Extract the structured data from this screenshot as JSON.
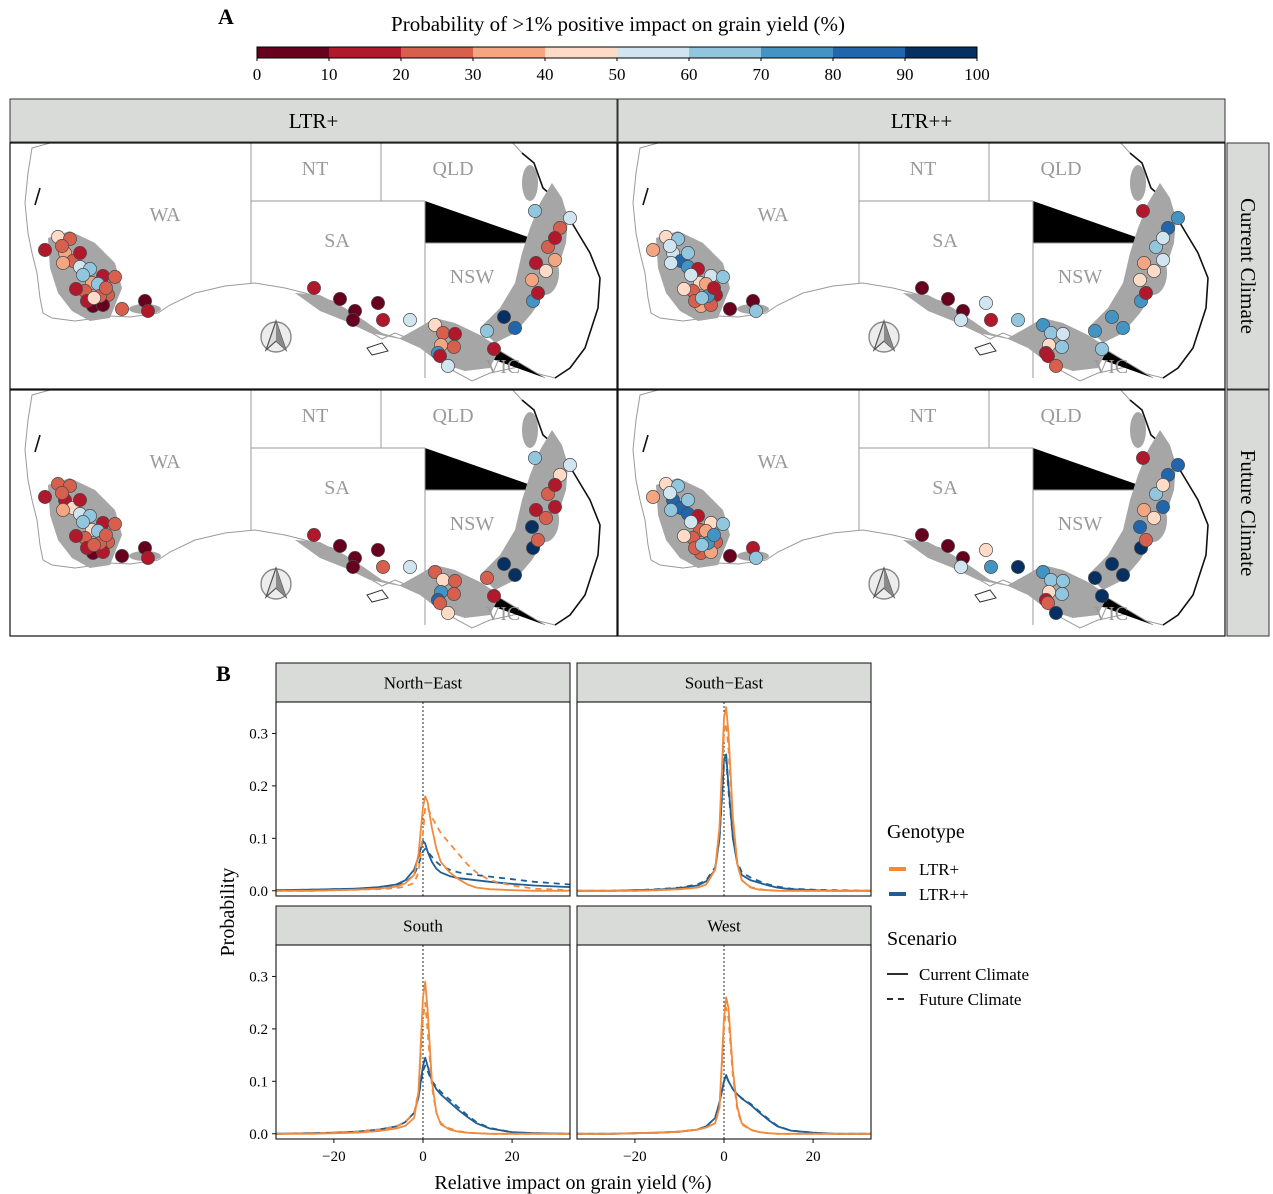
{
  "panel_a_label": "A",
  "panel_b_label": "B",
  "colorbar": {
    "title": "Probability of >1% positive impact on grain yield (%)",
    "ticks": [
      "0",
      "10",
      "20",
      "30",
      "40",
      "50",
      "60",
      "70",
      "80",
      "90",
      "100"
    ],
    "colors": [
      "#67001f",
      "#b2182b",
      "#d6604d",
      "#f4a582",
      "#fddbc7",
      "#d1e5f0",
      "#92c5de",
      "#4393c3",
      "#2166ac",
      "#053061"
    ]
  },
  "maps": {
    "col_labels": [
      "LTR+",
      "LTR++"
    ],
    "row_labels": [
      "Current Climate",
      "Future Climate"
    ],
    "states": [
      "WA",
      "NT",
      "SA",
      "QLD",
      "NSW",
      "VIC"
    ],
    "site_colors": {
      "ltrp_current": [
        "#b2182b",
        "#fddbc7",
        "#d6604d",
        "#f4a582",
        "#d6604d",
        "#d1e5f0",
        "#92c5de",
        "#b2182b",
        "#d6604d",
        "#f4a582",
        "#d6604d",
        "#92c5de",
        "#d6604d",
        "#67001f",
        "#b2182b",
        "#67001f",
        "#d6604d",
        "#d6604d",
        "#b2182b",
        "#92c5de",
        "#67001f",
        "#b2182b",
        "#b2182b",
        "#d6604d",
        "#f4a582",
        "#fddbc7",
        "#d6604d",
        "#b2182b",
        "#67001f",
        "#67001f",
        "#67001f",
        "#67001f",
        "#b2182b",
        "#d1e5f0",
        "#fddbc7",
        "#d6604d",
        "#b2182b",
        "#f4a582",
        "#4393c3",
        "#d6604d",
        "#b2182b",
        "#d1e5f0",
        "#92c5de",
        "#b2182b",
        "#053061",
        "#2166ac",
        "#4393c3",
        "#b2182b",
        "#f4a582"
      ],
      "ltrpp_current": [
        "#f4a582",
        "#fddbc7",
        "#92c5de",
        "#d1e5f0",
        "#2166ac",
        "#4393c3",
        "#b2182b",
        "#d1e5f0",
        "#92c5de",
        "#fddbc7",
        "#d6604d",
        "#f4a582",
        "#b2182b",
        "#f4a582",
        "#d6604d",
        "#d6604d",
        "#4393c3",
        "#67001f",
        "#fddbc7",
        "#d1e5f0",
        "#67001f",
        "#92c5de",
        "#92c5de",
        "#d1e5f0",
        "#d1e5f0",
        "#92c5de",
        "#b2182b",
        "#67001f",
        "#67001f",
        "#67001f",
        "#d1e5f0",
        "#d1e5f0",
        "#b2182b",
        "#92c5de",
        "#4393c3",
        "#92c5de",
        "#d1e5f0",
        "#fddbc7",
        "#b2182b",
        "#92c5de",
        "#b2182b",
        "#d6604d",
        "#4393c3",
        "#92c5de",
        "#4393c3",
        "#4393c3",
        "#4393c3",
        "#b2182b",
        "#fddbc7"
      ],
      "ltrp_future": [
        "#b2182b",
        "#d6604d",
        "#d6604d",
        "#b2182b",
        "#fddbc7",
        "#d1e5f0",
        "#92c5de",
        "#b2182b",
        "#d6604d",
        "#fddbc7",
        "#d6604d",
        "#92c5de",
        "#d6604d",
        "#67001f",
        "#b2182b",
        "#b2182b",
        "#d6604d",
        "#67001f",
        "#b2182b",
        "#92c5de",
        "#67001f",
        "#b2182b",
        "#b2182b",
        "#d6604d",
        "#f4a582",
        "#d6604d",
        "#d6604d",
        "#b2182b",
        "#67001f",
        "#67001f",
        "#67001f",
        "#67001f",
        "#d6604d",
        "#d1e5f0",
        "#d6604d",
        "#fddbc7",
        "#d6604d",
        "#4393c3",
        "#2166ac",
        "#d6604d",
        "#d6604d",
        "#fddbc7",
        "#d6604d",
        "#b2182b",
        "#053061",
        "#053061",
        "#053061",
        "#d6604d",
        "#053061"
      ],
      "ltrpp_future": [
        "#f4a582",
        "#fddbc7",
        "#92c5de",
        "#2166ac",
        "#2166ac",
        "#2166ac",
        "#b2182b",
        "#fddbc7",
        "#92c5de",
        "#d6604d",
        "#d6604d",
        "#f4a582",
        "#d6604d",
        "#d6604d",
        "#d6604d",
        "#f4a582",
        "#4393c3",
        "#67001f",
        "#fddbc7",
        "#d1e5f0",
        "#b2182b",
        "#92c5de",
        "#92c5de",
        "#d1e5f0",
        "#92c5de",
        "#92c5de",
        "#4393c3",
        "#67001f",
        "#67001f",
        "#67001f",
        "#d1e5f0",
        "#fddbc7",
        "#4393c3",
        "#053061",
        "#4393c3",
        "#92c5de",
        "#92c5de",
        "#fddbc7",
        "#b2182b",
        "#92c5de",
        "#d6604d",
        "#053061",
        "#053061",
        "#053061",
        "#053061",
        "#053061",
        "#053061",
        "#d6604d",
        "#2166ac"
      ]
    }
  },
  "chart_data": {
    "type": "line",
    "facets": [
      "North−East",
      "South−East",
      "South",
      "West"
    ],
    "xlabel": "Relative impact on grain yield (%)",
    "ylabel": "Probability",
    "xlim": [
      -33,
      33
    ],
    "ylim": [
      -0.01,
      0.36
    ],
    "x_ticks": [
      -20,
      0,
      20
    ],
    "x_tick_labels": [
      "−20",
      "0",
      "20"
    ],
    "y_ticks": [
      0.0,
      0.1,
      0.2,
      0.3
    ],
    "y_tick_labels": [
      "0.0",
      "0.1",
      "0.2",
      "0.3"
    ],
    "reference_line_x": 0,
    "legend": {
      "genotype_title": "Genotype",
      "genotype_items": [
        {
          "label": "LTR+",
          "color": "#F28A3C"
        },
        {
          "label": "LTR++",
          "color": "#1F5E94"
        }
      ],
      "scenario_title": "Scenario",
      "scenario_items": [
        {
          "label": "Current Climate",
          "dash": "solid"
        },
        {
          "label": "Future Climate",
          "dash": "dashed"
        }
      ]
    },
    "x": [
      -33,
      -25,
      -20,
      -15,
      -10,
      -6,
      -4,
      -2,
      -1,
      0,
      0.5,
      1,
      2,
      3,
      4,
      6,
      8,
      10,
      12,
      15,
      20,
      25,
      33
    ],
    "series": {
      "North−East": {
        "LTR+ Current": [
          0.0,
          0.0,
          0.001,
          0.002,
          0.004,
          0.008,
          0.014,
          0.03,
          0.07,
          0.16,
          0.18,
          0.17,
          0.12,
          0.08,
          0.055,
          0.035,
          0.022,
          0.012,
          0.006,
          0.003,
          0.001,
          0.0,
          0.0
        ],
        "LTR+ Future": [
          0.0,
          0.0,
          0.001,
          0.002,
          0.003,
          0.005,
          0.008,
          0.015,
          0.035,
          0.11,
          0.16,
          0.16,
          0.14,
          0.125,
          0.11,
          0.09,
          0.07,
          0.05,
          0.035,
          0.02,
          0.01,
          0.004,
          0.001
        ],
        "LTR++ Current": [
          0.001,
          0.002,
          0.003,
          0.004,
          0.007,
          0.012,
          0.02,
          0.04,
          0.065,
          0.095,
          0.09,
          0.075,
          0.055,
          0.042,
          0.035,
          0.028,
          0.024,
          0.022,
          0.02,
          0.017,
          0.013,
          0.01,
          0.007
        ],
        "LTR++ Future": [
          0.001,
          0.002,
          0.003,
          0.004,
          0.006,
          0.01,
          0.016,
          0.03,
          0.05,
          0.075,
          0.08,
          0.075,
          0.065,
          0.055,
          0.048,
          0.04,
          0.035,
          0.032,
          0.03,
          0.027,
          0.022,
          0.017,
          0.012
        ]
      },
      "South−East": {
        "LTR+ Current": [
          0.0,
          0.0,
          0.0,
          0.001,
          0.003,
          0.006,
          0.012,
          0.04,
          0.12,
          0.33,
          0.35,
          0.3,
          0.14,
          0.05,
          0.02,
          0.006,
          0.002,
          0.001,
          0.0,
          0.0,
          0.0,
          0.0,
          0.0
        ],
        "LTR+ Future": [
          0.0,
          0.0,
          0.0,
          0.001,
          0.003,
          0.006,
          0.012,
          0.04,
          0.12,
          0.3,
          0.32,
          0.27,
          0.13,
          0.05,
          0.02,
          0.007,
          0.003,
          0.001,
          0.0,
          0.0,
          0.0,
          0.0,
          0.0
        ],
        "LTR++ Current": [
          0.0,
          0.0,
          0.001,
          0.002,
          0.005,
          0.01,
          0.018,
          0.04,
          0.1,
          0.25,
          0.26,
          0.2,
          0.1,
          0.05,
          0.03,
          0.02,
          0.015,
          0.01,
          0.006,
          0.003,
          0.001,
          0.0,
          0.0
        ],
        "LTR++ Future": [
          0.0,
          0.0,
          0.001,
          0.003,
          0.006,
          0.012,
          0.02,
          0.045,
          0.1,
          0.24,
          0.25,
          0.19,
          0.1,
          0.055,
          0.035,
          0.025,
          0.018,
          0.012,
          0.008,
          0.004,
          0.002,
          0.001,
          0.0
        ]
      },
      "South": {
        "LTR+ Current": [
          0.0,
          0.0,
          0.001,
          0.002,
          0.005,
          0.01,
          0.015,
          0.03,
          0.08,
          0.26,
          0.29,
          0.24,
          0.1,
          0.04,
          0.018,
          0.008,
          0.004,
          0.002,
          0.001,
          0.0,
          0.0,
          0.0,
          0.0
        ],
        "LTR+ Future": [
          0.0,
          0.001,
          0.002,
          0.004,
          0.008,
          0.014,
          0.022,
          0.04,
          0.08,
          0.22,
          0.25,
          0.2,
          0.09,
          0.04,
          0.02,
          0.01,
          0.005,
          0.002,
          0.001,
          0.0,
          0.0,
          0.0,
          0.0
        ],
        "LTR++ Current": [
          0.0,
          0.001,
          0.002,
          0.004,
          0.008,
          0.014,
          0.022,
          0.04,
          0.07,
          0.13,
          0.145,
          0.13,
          0.1,
          0.085,
          0.075,
          0.06,
          0.045,
          0.032,
          0.02,
          0.01,
          0.003,
          0.001,
          0.0
        ],
        "LTR++ Future": [
          0.0,
          0.001,
          0.002,
          0.004,
          0.008,
          0.014,
          0.022,
          0.04,
          0.07,
          0.12,
          0.13,
          0.12,
          0.1,
          0.09,
          0.08,
          0.065,
          0.05,
          0.035,
          0.022,
          0.011,
          0.003,
          0.001,
          0.0
        ]
      },
      "West": {
        "LTR+ Current": [
          0.0,
          0.0,
          0.001,
          0.002,
          0.004,
          0.008,
          0.012,
          0.02,
          0.05,
          0.22,
          0.26,
          0.24,
          0.12,
          0.05,
          0.02,
          0.008,
          0.003,
          0.001,
          0.0,
          0.0,
          0.0,
          0.0,
          0.0
        ],
        "LTR+ Future": [
          0.0,
          0.0,
          0.001,
          0.002,
          0.004,
          0.008,
          0.012,
          0.02,
          0.05,
          0.2,
          0.24,
          0.22,
          0.11,
          0.045,
          0.018,
          0.007,
          0.003,
          0.001,
          0.0,
          0.0,
          0.0,
          0.0,
          0.0
        ],
        "LTR++ Current": [
          0.0,
          0.0,
          0.001,
          0.002,
          0.004,
          0.008,
          0.014,
          0.03,
          0.06,
          0.1,
          0.112,
          0.1,
          0.085,
          0.075,
          0.067,
          0.055,
          0.04,
          0.026,
          0.014,
          0.006,
          0.002,
          0.0,
          0.0
        ],
        "LTR++ Future": [
          0.0,
          0.0,
          0.001,
          0.002,
          0.004,
          0.008,
          0.014,
          0.03,
          0.06,
          0.1,
          0.11,
          0.1,
          0.085,
          0.075,
          0.068,
          0.057,
          0.042,
          0.028,
          0.015,
          0.006,
          0.002,
          0.0,
          0.0
        ]
      }
    }
  }
}
